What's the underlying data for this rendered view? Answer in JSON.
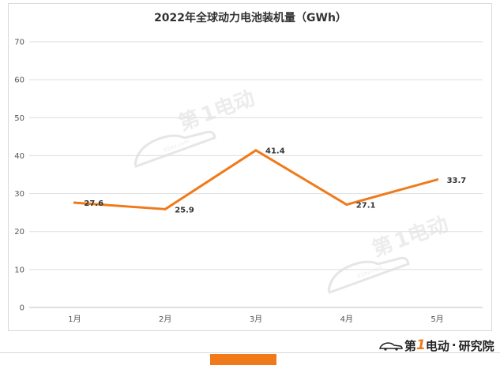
{
  "chart_data": {
    "type": "line",
    "title": "2022年全球动力电池装机量（GWh）",
    "categories": [
      "1月",
      "2月",
      "3月",
      "4月",
      "5月"
    ],
    "series": [
      {
        "values": [
          27.6,
          25.9,
          41.4,
          27.1,
          33.7
        ],
        "color": "#f07a1a"
      }
    ],
    "data_labels": [
      "27.6",
      "25.9",
      "41.4",
      "27.1",
      "33.7"
    ],
    "ylim": [
      0,
      70
    ],
    "yticks": [
      0,
      10,
      20,
      30,
      40,
      50,
      60,
      70
    ],
    "grid": true,
    "legend": "none"
  },
  "watermark": {
    "text_a": "第",
    "text_num": "1",
    "text_b": "电动",
    "url_text": "d1ev.com"
  },
  "brand": {
    "prefix": "第",
    "num": "1",
    "suffix": "电动",
    "dot": "·",
    "tail": "研究院",
    "icon": "car-logo-icon"
  },
  "colors": {
    "line": "#f07a1a",
    "accent_bar": "#f07a1a"
  }
}
